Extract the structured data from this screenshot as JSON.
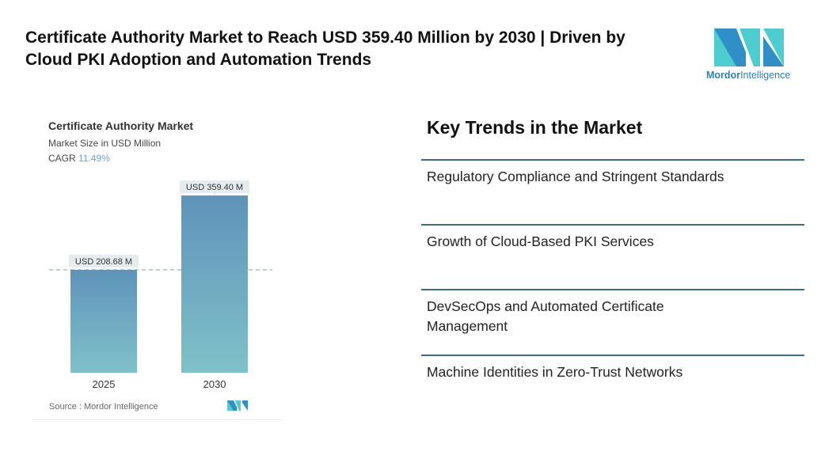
{
  "title": "Certificate Authority Market to Reach USD 359.40 Million by 2030 | Driven by Cloud PKI Adoption and Automation Trends",
  "logo": {
    "name": "Mordor Intelligence",
    "part1": "Mordor",
    "part2": "Intelligence",
    "colors": [
      "#2f8fc7",
      "#4ecdd0"
    ]
  },
  "chart_data": {
    "type": "bar",
    "title": "Certificate Authority Market",
    "subtitle": "Market Size in USD Million",
    "cagr_label": "CAGR",
    "cagr_value": "11.49%",
    "categories": [
      "2025",
      "2030"
    ],
    "values": [
      208.68,
      359.4
    ],
    "data_labels": [
      "USD 208.68 M",
      "USD 359.40 M"
    ],
    "ylim": [
      0,
      359.4
    ],
    "colors": {
      "top": "#5f93ba",
      "bottom": "#7fc1c9"
    },
    "source": "Source :  Mordor Intelligence"
  },
  "trends": {
    "heading": "Key Trends in the Market",
    "items": [
      "Regulatory Compliance and Stringent Standards",
      "Growth of Cloud-Based PKI Services",
      "DevSecOps and Automated Certificate Management",
      "Machine Identities in Zero-Trust Networks"
    ]
  }
}
